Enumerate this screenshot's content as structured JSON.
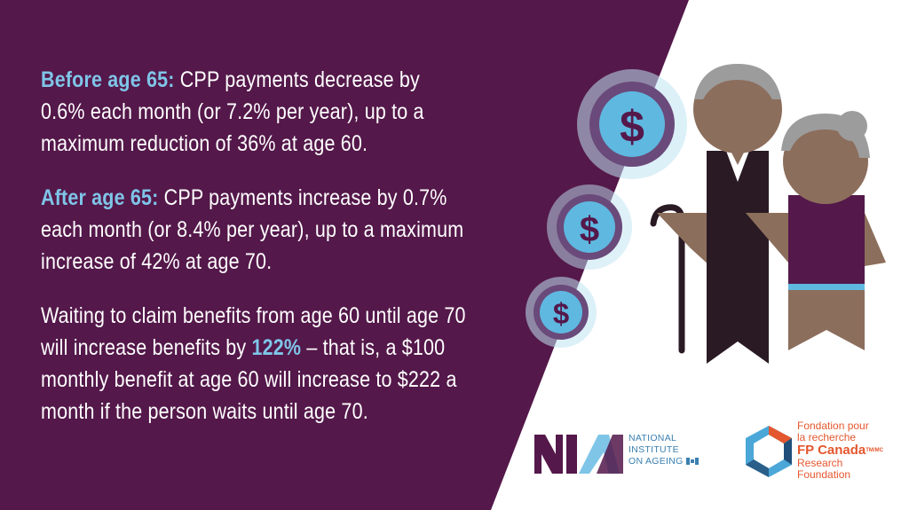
{
  "paragraphs": [
    {
      "lead": "Before age 65:",
      "lines": [
        "CPP payments decrease by",
        "0.6% each month (or 7.2% per year), up to a",
        "maximum reduction of 36% at age 60."
      ]
    },
    {
      "lead": "After age 65:",
      "lines": [
        "CPP payments increase by 0.7%",
        "each month (or 8.4% per year), up to a maximum",
        "increase of 42% at age 70."
      ]
    },
    {
      "line1": "Waiting to claim benefits from age 60 until age 70",
      "line2_pre": "will increase benefits by ",
      "line2_highlight": "122%",
      "line2_post": " – that is, a $100",
      "line3": "monthly benefit at age 60 will increase to $222 a",
      "line4": "month if the person waits until age 70."
    }
  ],
  "nia_logo": {
    "line1": "NATIONAL",
    "line2": "INSTITUTE",
    "line3": "ON AGEING"
  },
  "fp_logo": {
    "line1": "Fondation pour",
    "line2": "la recherche",
    "line3": "FP Canada",
    "tm": "TM/MC",
    "line4": "Research",
    "line5": "Foundation"
  },
  "icons": [
    "dollar-icon",
    "dollar-icon",
    "dollar-icon",
    "seniors-illustration"
  ],
  "colors": {
    "purple": "#54184a",
    "highlight": "#7fc5e8",
    "coin_blue": "#5fb8e0",
    "orange": "#e4572e",
    "skin": "#8c6e5c",
    "jacket": "#2a1a24"
  }
}
